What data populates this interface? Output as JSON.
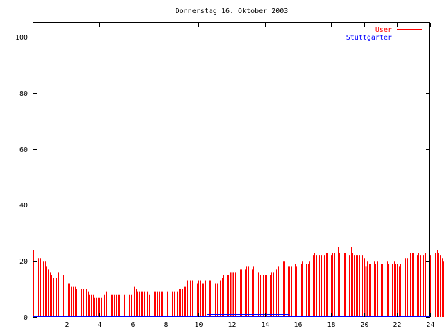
{
  "chart_data": {
    "type": "bar",
    "title": "Donnerstag 16. Oktober 2003",
    "xlabel": "",
    "ylabel": "",
    "xlim": [
      0,
      24
    ],
    "ylim": [
      0,
      105
    ],
    "x_ticks": [
      2,
      4,
      6,
      8,
      10,
      12,
      14,
      16,
      18,
      20,
      22,
      24
    ],
    "y_ticks": [
      0,
      20,
      40,
      60,
      80,
      100
    ],
    "grid": false,
    "legend_position": "top-right",
    "colors": {
      "User": "#ff0000",
      "Stuttgarter": "#0000ff"
    },
    "series": [
      {
        "name": "User",
        "interval_hours": 0.1,
        "values": [
          24,
          22,
          22,
          21,
          21,
          21,
          20,
          20,
          18,
          17,
          16,
          15,
          14,
          13,
          14,
          16,
          15,
          15,
          15,
          14,
          13,
          12,
          12,
          11,
          11,
          11,
          10,
          11,
          10,
          10,
          10,
          10,
          10,
          9,
          8,
          8,
          8,
          7,
          7,
          7,
          7,
          7,
          8,
          8,
          9,
          9,
          8,
          8,
          8,
          8,
          8,
          8,
          8,
          8,
          8,
          8,
          8,
          8,
          8,
          8,
          9,
          11,
          10,
          9,
          9,
          9,
          9,
          9,
          8,
          9,
          8,
          9,
          9,
          9,
          9,
          9,
          9,
          9,
          9,
          9,
          8,
          9,
          10,
          9,
          9,
          9,
          8,
          9,
          10,
          10,
          10,
          11,
          11,
          13,
          13,
          13,
          13,
          12,
          13,
          12,
          13,
          13,
          12,
          12,
          13,
          14,
          13,
          13,
          13,
          13,
          12,
          12,
          13,
          13,
          14,
          15,
          15,
          15,
          15,
          16,
          15,
          16,
          16,
          17,
          17,
          17,
          17,
          18,
          17,
          18,
          18,
          18,
          17,
          18,
          17,
          16,
          16,
          15,
          15,
          15,
          15,
          15,
          15,
          15,
          16,
          16,
          17,
          17,
          18,
          18,
          19,
          20,
          20,
          19,
          18,
          18,
          18,
          19,
          19,
          18,
          18,
          19,
          19,
          20,
          20,
          19,
          19,
          20,
          21,
          22,
          23,
          22,
          22,
          22,
          22,
          22,
          22,
          23,
          23,
          23,
          22,
          23,
          23,
          24,
          25,
          23,
          23,
          24,
          23,
          23,
          22,
          22,
          25,
          23,
          22,
          22,
          22,
          22,
          21,
          22,
          21,
          20,
          20,
          19,
          19,
          19,
          20,
          19,
          20,
          20,
          19,
          19,
          20,
          20,
          20,
          19,
          21,
          19,
          20,
          19,
          19,
          18,
          19,
          19,
          20,
          21,
          21,
          22,
          23,
          23,
          23,
          23,
          22,
          23,
          22,
          22,
          22,
          23,
          22,
          23,
          22,
          22,
          22,
          23,
          24,
          23,
          22,
          21,
          20,
          19,
          17,
          17,
          17,
          16,
          15,
          15
        ],
        "spikes": [
          {
            "x": 12.0,
            "value": 16
          },
          {
            "x": 20.1,
            "value": 18
          }
        ]
      },
      {
        "name": "Stuttgarter",
        "segments": [
          {
            "x_start": 10.5,
            "x_end": 15.5,
            "value": 1
          }
        ]
      }
    ]
  }
}
